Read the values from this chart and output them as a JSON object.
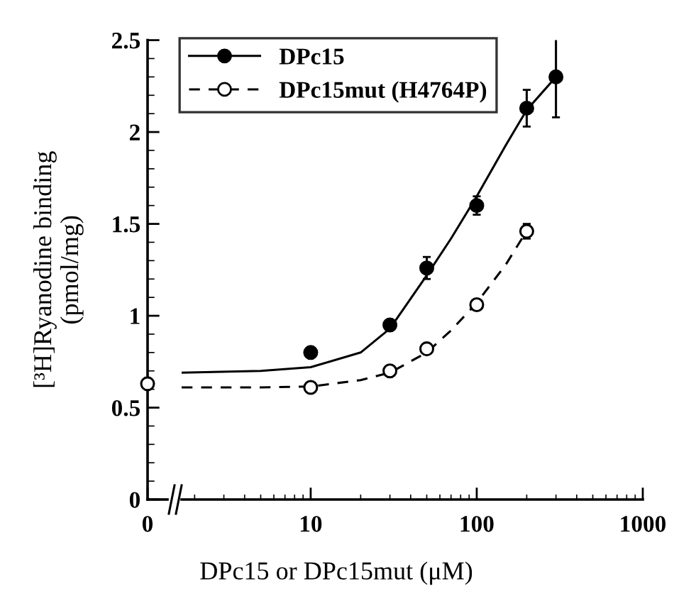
{
  "chart_data": [
    {
      "type": "scatter",
      "categories": [
        "0"
      ],
      "ylabel": "[³H]Ryanodine binding\n(pmol/mg)",
      "ylim": [
        0,
        2.5
      ],
      "yticks": [
        0,
        0.5,
        1,
        1.5,
        2,
        2.5
      ],
      "series": [
        {
          "color": "#000000",
          "marker": "circle",
          "line_style": "dashed",
          "values": [
            0.63
          ]
        }
      ]
    },
    {
      "type": "scatter",
      "log": "x",
      "xlim": [
        1.67,
        1000
      ],
      "xticks": [
        10,
        100,
        1000
      ],
      "ylim": [
        0,
        2.5
      ],
      "tick_labels": "x",
      "xlabel": "DPc15 or DPc15mut (μM)",
      "legend": "top left",
      "series": [
        {
          "name": "DPc15",
          "color": "#000000",
          "marker": "circle",
          "line_style": "solid",
          "x": [
            10,
            30,
            50,
            100,
            200,
            300
          ],
          "values": [
            0.8,
            0.95,
            1.26,
            1.6,
            2.13,
            2.3
          ],
          "errors": [
            null,
            null,
            0.06,
            0.05,
            0.1,
            0.22
          ]
        },
        {
          "name": "DPc15mut (H4764P)",
          "color": "#000000",
          "marker": "circle",
          "line_style": "dashed",
          "x": [
            10,
            30,
            50,
            100,
            200
          ],
          "values": [
            0.61,
            0.7,
            0.82,
            1.06,
            1.46
          ],
          "errors": [
            null,
            null,
            null,
            null,
            0.04
          ]
        },
        {
          "type": "line",
          "color": "#000000",
          "line_style": "solid",
          "x": [
            1.67,
            5,
            10,
            20,
            30,
            50,
            70,
            100,
            150,
            200,
            300
          ],
          "values": [
            0.69,
            0.7,
            0.72,
            0.8,
            0.93,
            1.22,
            1.42,
            1.65,
            1.93,
            2.12,
            2.3
          ]
        },
        {
          "type": "line",
          "color": "#000000",
          "line_style": "dashed",
          "x": [
            1.67,
            5,
            10,
            20,
            30,
            50,
            70,
            100,
            150,
            190
          ],
          "values": [
            0.61,
            0.61,
            0.615,
            0.65,
            0.69,
            0.8,
            0.92,
            1.07,
            1.28,
            1.43
          ]
        }
      ]
    }
  ]
}
